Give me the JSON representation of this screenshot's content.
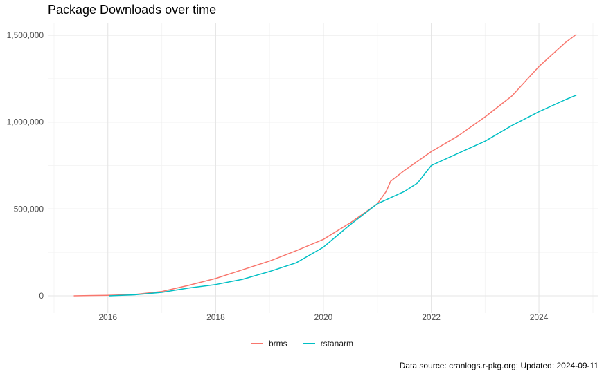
{
  "chart_data": {
    "type": "line",
    "title": "Package Downloads over time",
    "xlabel": "",
    "ylabel": "",
    "caption": "Data source: cranlogs.r-pkg.org; Updated: 2024-09-11",
    "x_range": [
      "2015-01-01",
      "2025-01-01"
    ],
    "ylim": [
      0,
      1500000
    ],
    "x_ticks": [
      {
        "date": "2016-01-01",
        "label": "2016"
      },
      {
        "date": "2018-01-01",
        "label": "2018"
      },
      {
        "date": "2020-01-01",
        "label": "2020"
      },
      {
        "date": "2022-01-01",
        "label": "2022"
      },
      {
        "date": "2024-01-01",
        "label": "2024"
      }
    ],
    "y_ticks": [
      {
        "value": 0,
        "label": "0"
      },
      {
        "value": 500000,
        "label": "500,000"
      },
      {
        "value": 1000000,
        "label": "1,000,000"
      },
      {
        "value": 1500000,
        "label": "1,500,000"
      }
    ],
    "grid": true,
    "legend_position": "bottom",
    "series": [
      {
        "name": "brms",
        "color": "#F8766D",
        "points": [
          [
            "2015-05-15",
            0
          ],
          [
            "2016-01-01",
            3000
          ],
          [
            "2016-07-01",
            8000
          ],
          [
            "2017-01-01",
            25000
          ],
          [
            "2017-07-01",
            60000
          ],
          [
            "2018-01-01",
            100000
          ],
          [
            "2018-07-01",
            150000
          ],
          [
            "2019-01-01",
            200000
          ],
          [
            "2019-07-01",
            260000
          ],
          [
            "2020-01-01",
            325000
          ],
          [
            "2020-07-01",
            420000
          ],
          [
            "2021-01-01",
            530000
          ],
          [
            "2021-03-01",
            600000
          ],
          [
            "2021-04-01",
            660000
          ],
          [
            "2021-07-01",
            720000
          ],
          [
            "2022-01-01",
            830000
          ],
          [
            "2022-07-01",
            920000
          ],
          [
            "2023-01-01",
            1030000
          ],
          [
            "2023-07-01",
            1150000
          ],
          [
            "2024-01-01",
            1320000
          ],
          [
            "2024-07-01",
            1460000
          ],
          [
            "2024-09-11",
            1505000
          ]
        ]
      },
      {
        "name": "rstanarm",
        "color": "#00BFC4",
        "points": [
          [
            "2016-01-10",
            0
          ],
          [
            "2016-07-01",
            6000
          ],
          [
            "2017-01-01",
            20000
          ],
          [
            "2017-07-01",
            45000
          ],
          [
            "2018-01-01",
            65000
          ],
          [
            "2018-07-01",
            95000
          ],
          [
            "2019-01-01",
            140000
          ],
          [
            "2019-07-01",
            190000
          ],
          [
            "2020-01-01",
            280000
          ],
          [
            "2020-07-01",
            410000
          ],
          [
            "2021-01-01",
            530000
          ],
          [
            "2021-07-01",
            600000
          ],
          [
            "2021-10-01",
            650000
          ],
          [
            "2022-01-01",
            750000
          ],
          [
            "2022-07-01",
            820000
          ],
          [
            "2023-01-01",
            890000
          ],
          [
            "2023-07-01",
            980000
          ],
          [
            "2024-01-01",
            1060000
          ],
          [
            "2024-07-01",
            1130000
          ],
          [
            "2024-09-11",
            1155000
          ]
        ]
      }
    ]
  }
}
